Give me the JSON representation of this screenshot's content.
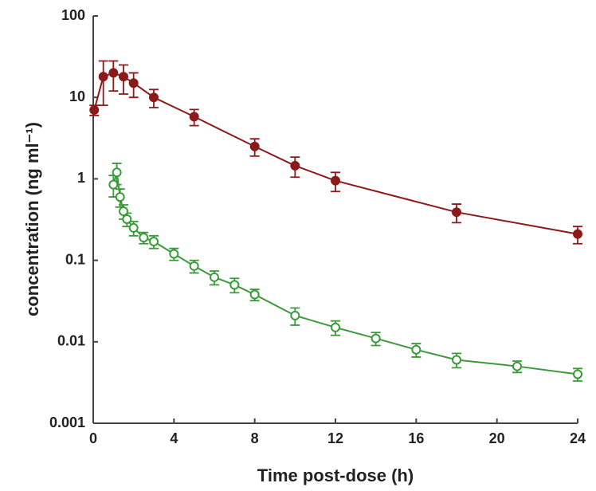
{
  "chart_data": {
    "type": "scatter-line",
    "x_label": "Time post-dose (h)",
    "y_label": "concentration (ng ml⁻¹)",
    "xlim": [
      0,
      24
    ],
    "xticks": [
      0,
      4,
      8,
      12,
      16,
      20,
      24
    ],
    "ylim": [
      0.001,
      100
    ],
    "yticks": [
      100,
      10,
      1,
      0.1,
      0.01,
      0.001
    ],
    "ylog": true,
    "series": [
      {
        "color": "#8b1a1a",
        "marker": "filled",
        "x": [
          0.05,
          0.5,
          1,
          1.5,
          2,
          3,
          5,
          8,
          10,
          12,
          18,
          24
        ],
        "values": [
          7,
          18,
          20,
          18,
          15,
          10,
          5.8,
          2.5,
          1.45,
          0.95,
          0.39,
          0.21
        ],
        "errors": [
          1,
          10,
          8,
          7,
          5,
          2.5,
          1.3,
          0.6,
          0.4,
          0.25,
          0.1,
          0.05
        ]
      },
      {
        "color": "#3a9a3a",
        "marker": "open",
        "x": [
          1,
          1.17,
          1.33,
          1.5,
          1.67,
          2,
          2.5,
          3,
          4,
          5,
          6,
          7,
          8,
          10,
          12,
          14,
          16,
          18,
          21,
          24
        ],
        "values": [
          0.85,
          1.2,
          0.6,
          0.4,
          0.32,
          0.25,
          0.19,
          0.17,
          0.12,
          0.085,
          0.062,
          0.05,
          0.038,
          0.021,
          0.015,
          0.011,
          0.008,
          0.006,
          0.005,
          0.004
        ],
        "errors": [
          0.25,
          0.35,
          0.15,
          0.08,
          0.06,
          0.05,
          0.03,
          0.03,
          0.02,
          0.015,
          0.012,
          0.01,
          0.006,
          0.005,
          0.003,
          0.002,
          0.0015,
          0.0012,
          0.0008,
          0.0007
        ]
      }
    ]
  }
}
